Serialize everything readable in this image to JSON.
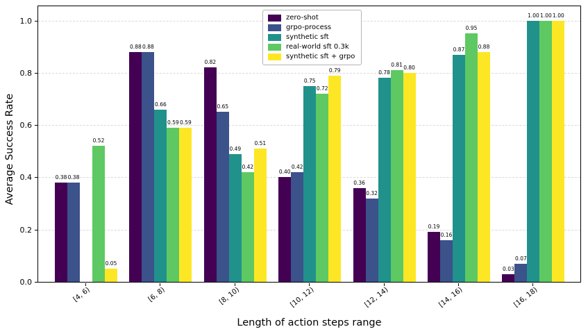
{
  "chart_data": {
    "type": "bar",
    "title": "",
    "xlabel": "Length of action steps range",
    "ylabel": "Average Success Rate",
    "categories": [
      "[4, 6)",
      "[6, 8)",
      "[8, 10)",
      "[10, 12)",
      "[12, 14)",
      "[14, 16)",
      "[16, 18)"
    ],
    "series": [
      {
        "name": "zero-shot",
        "color": "#440154",
        "values": [
          0.38,
          0.88,
          0.82,
          0.4,
          0.36,
          0.19,
          0.03
        ]
      },
      {
        "name": "grpo-process",
        "color": "#3b528b",
        "values": [
          0.38,
          0.88,
          0.65,
          0.42,
          0.32,
          0.16,
          0.07
        ]
      },
      {
        "name": "synthetic sft",
        "color": "#21918c",
        "values": [
          0.0,
          0.66,
          0.49,
          0.75,
          0.78,
          0.87,
          1.0
        ]
      },
      {
        "name": "real-world sft 0.3k",
        "color": "#5ec962",
        "values": [
          0.52,
          0.59,
          0.42,
          0.72,
          0.81,
          0.95,
          1.0
        ]
      },
      {
        "name": "synthetic sft + grpo",
        "color": "#fde725",
        "values": [
          0.05,
          0.59,
          0.51,
          0.79,
          0.8,
          0.88,
          1.0
        ]
      }
    ],
    "ylim": [
      0.0,
      1.06
    ],
    "yticks": [
      0.0,
      0.2,
      0.4,
      0.6,
      0.8,
      1.0
    ],
    "ytick_labels": [
      "0.0",
      "0.2",
      "0.4",
      "0.6",
      "0.8",
      "1.0"
    ],
    "grid": "horizontal-dashed",
    "legend_position": "upper-center",
    "bar_value_labels": true,
    "value_label_decimals": 2,
    "zero_bars_hidden": true
  }
}
